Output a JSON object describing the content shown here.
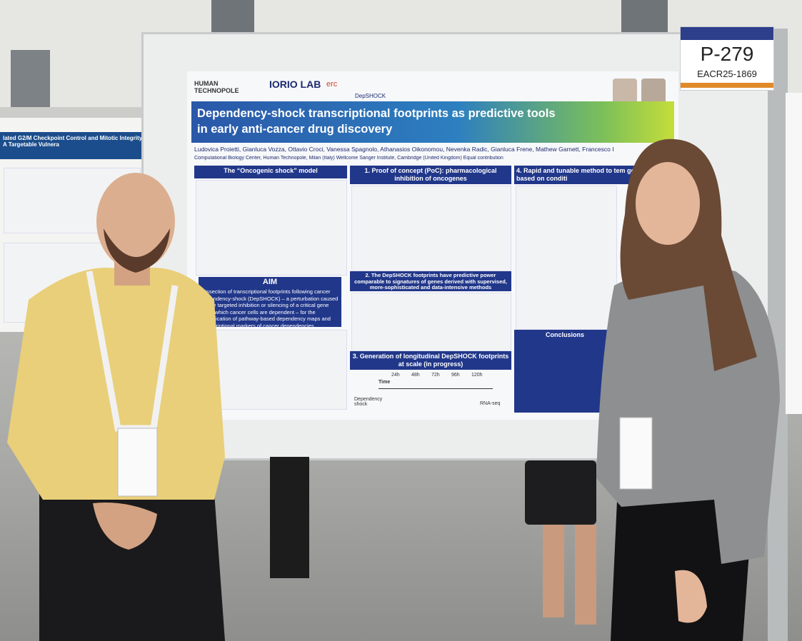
{
  "board": {
    "poster_number": "P-279",
    "poster_code": "EACR25-1869"
  },
  "neighbor_poster": {
    "title": "lated G2/M Checkpoint Control and Mitotic Integrity. A Targetable Vulnera"
  },
  "poster": {
    "logos": [
      "HUMAN TECHNOPOLE",
      "IORIO LAB",
      "erc",
      "DepSHOCK"
    ],
    "title_lines": [
      "Dependency-shock transcriptional footprints as predictive tools",
      "in early anti-cancer drug discovery"
    ],
    "authors": "Ludovica Proietti, Gianluca Vozza, Ottavio Croci, Vanessa Spagnolo, Athanasios Oikonomou, Nevenka Radic, Gianluca Frene, Mathew Garnett, Francesco I",
    "affiliations": "Computational Biology Center, Human Technopole, Milan (Italy)  Wellcome Sanger Institute, Cambridge (United Kingdom)  Equal contribution",
    "sections": [
      {
        "heading": "The “Oncogenic shock” model"
      },
      {
        "heading": "1. Proof of concept (PoC): pharmacological inhibition of oncogenes"
      },
      {
        "heading": "4. Rapid and tunable method to tem gene editing based on conditi"
      },
      {
        "heading": "2. The DepSHOCK footprints have predictive power comparable to signatures of genes derived with supervised, more-sophisticated and data-intensive methods"
      },
      {
        "heading": "3. Generation of longitudinal DepSHOCK footprints at scale (in progress)"
      },
      {
        "heading": "Conclusions"
      }
    ],
    "aim": {
      "heading": "AIM",
      "text": "Dissection of transcriptional footprints following cancer dependency-shock (DepSHOCK) – a perturbation caused by the targeted inhibition or silencing of a critical gene upon which cancer cells are dependent – for the identification of pathway-based dependency maps and transcriptional markers of cancer dependencies"
    },
    "timeline": {
      "label": "Time",
      "points": [
        "24h",
        "48h",
        "72h",
        "96h",
        "120h"
      ],
      "start": "Dependency shock",
      "end": "RNA-seq"
    }
  }
}
